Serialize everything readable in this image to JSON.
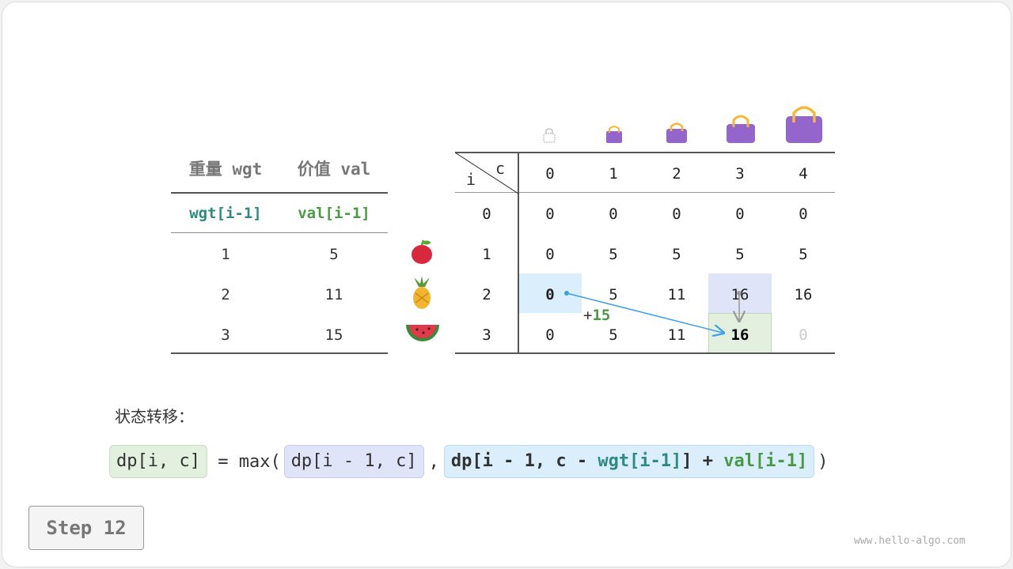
{
  "left_table": {
    "headers": [
      "重量 wgt",
      "价值 val"
    ],
    "subheaders": [
      "wgt[i-1]",
      "val[i-1]"
    ],
    "rows": [
      [
        "1",
        "5"
      ],
      [
        "2",
        "11"
      ],
      [
        "3",
        "15"
      ]
    ]
  },
  "items": [
    "apple-icon",
    "pineapple-icon",
    "watermelon-icon"
  ],
  "dp_table": {
    "corner_i": "i",
    "corner_c": "c",
    "col_headers": [
      "0",
      "1",
      "2",
      "3",
      "4"
    ],
    "row_headers": [
      "0",
      "1",
      "2",
      "3"
    ],
    "rows": [
      [
        "0",
        "0",
        "0",
        "0",
        "0"
      ],
      [
        "0",
        "5",
        "5",
        "5",
        "5"
      ],
      [
        "0",
        "5",
        "11",
        "16",
        "16"
      ],
      [
        "0",
        "5",
        "11",
        "16",
        "0"
      ]
    ]
  },
  "annotation": "+15",
  "plus_sign": "+",
  "plus_value": "15",
  "label": "状态转移：",
  "formula": {
    "lhs": "dp[i, c]",
    "eq": " = max(",
    "a": "dp[i - 1, c]",
    "comma": ",",
    "b1": "dp[i - 1, c - ",
    "b2": "wgt[i-1]",
    "b3": "] + ",
    "b4": "val[i-1]",
    "close": ")"
  },
  "step": "Step 12",
  "watermark": "www.hello-algo.com",
  "colors": {
    "teal": "#2f8a80",
    "green": "#4a9a45",
    "blue_cell": "#dbeefb",
    "lavender_cell": "#e0e4f8",
    "green_cell": "#e3f0e0",
    "arrow": "#3a9fe6",
    "bag": "#9466cc"
  }
}
